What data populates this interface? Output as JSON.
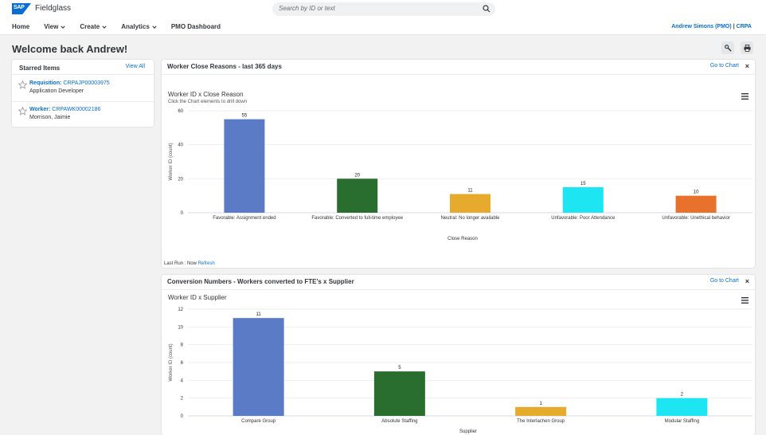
{
  "header": {
    "logo_text": "SAP",
    "product": "Fieldglass",
    "search_placeholder": "Search by ID or text",
    "nav": [
      {
        "label": "Home",
        "has_menu": false
      },
      {
        "label": "View",
        "has_menu": true
      },
      {
        "label": "Create",
        "has_menu": true
      },
      {
        "label": "Analytics",
        "has_menu": true
      },
      {
        "label": "PMO Dashboard",
        "has_menu": false
      }
    ],
    "user_name": "Andrew Simons (PMO)",
    "separator": "|",
    "company": "CRPA"
  },
  "welcome": "Welcome back Andrew!",
  "starred": {
    "title": "Starred Items",
    "view_all": "View All",
    "items": [
      {
        "type": "Requisition:",
        "id": "CRPAJP00003975",
        "subtitle": "Application Developer"
      },
      {
        "type": "Worker:",
        "id": "CRPAWK00002186",
        "subtitle": "Morrison, Jaimie"
      }
    ]
  },
  "cards": [
    {
      "title": "Worker Close Reasons - last 365 days",
      "goto": "Go to Chart",
      "close": "×",
      "chart_title": "Worker ID x Close Reason",
      "chart_subtitle": "Click the Chart elements to drill down",
      "last_run_label": "Last Run : Now",
      "refresh": "Refresh"
    },
    {
      "title": "Conversion Numbers - Workers converted to FTE's x Supplier",
      "goto": "Go to Chart",
      "close": "×",
      "chart_title": "Worker ID x Supplier"
    }
  ],
  "chart_data": [
    {
      "type": "bar",
      "title": "Worker ID x Close Reason",
      "xlabel": "Close Reason",
      "ylabel": "Worker ID (count)",
      "ylim": [
        0,
        60
      ],
      "yticks": [
        0,
        20,
        40,
        60
      ],
      "categories": [
        "Favorable: Assignment ended",
        "Favorable: Converted to full-time employee",
        "Neutral: No longer available",
        "Unfavorable: Poor Attendance",
        "Unfavorable: Unethical behavior"
      ],
      "values": [
        55,
        20,
        11,
        15,
        10
      ],
      "colors": [
        "#5b7bc7",
        "#2a6e2f",
        "#e6ab2d",
        "#1de6f2",
        "#e8722b"
      ],
      "grid": true,
      "legend": "none"
    },
    {
      "type": "bar",
      "title": "Worker ID x Supplier",
      "xlabel": "Supplier",
      "ylabel": "Worker ID (count)",
      "ylim": [
        0,
        12
      ],
      "yticks": [
        0,
        2,
        4,
        6,
        8,
        10,
        12
      ],
      "categories": [
        "Compare Group",
        "Absolute Staffing",
        "The Interlachen Group",
        "Modular Staffing"
      ],
      "values": [
        11,
        5,
        1,
        2
      ],
      "colors": [
        "#5b7bc7",
        "#2a6e2f",
        "#e6ab2d",
        "#1de6f2"
      ],
      "grid": true,
      "legend": "none"
    }
  ]
}
